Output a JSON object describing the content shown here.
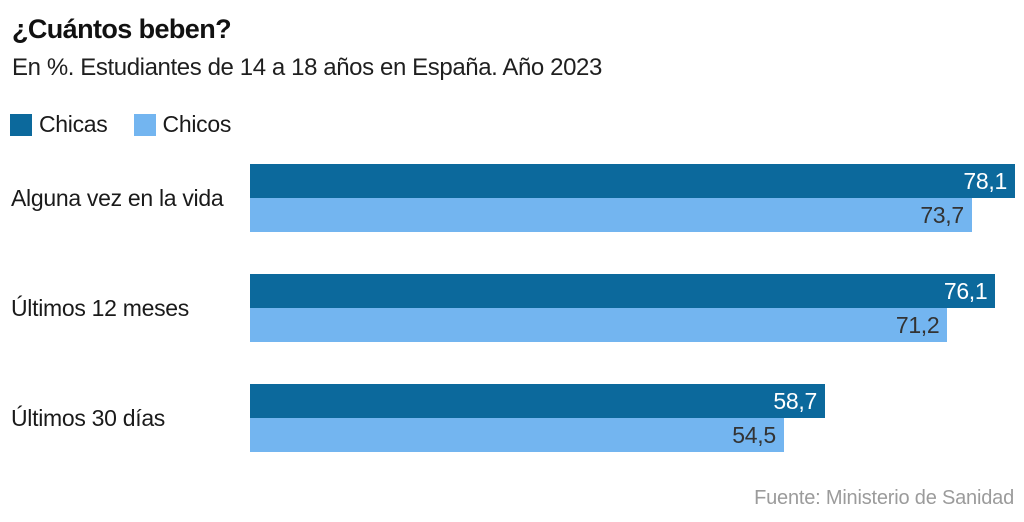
{
  "header": {
    "title": "¿Cuántos beben?",
    "subtitle": "En %. Estudiantes de 14 a 18 años en España. Año 2023"
  },
  "chart_data": {
    "type": "bar",
    "orientation": "horizontal",
    "title": "¿Cuántos beben?",
    "subtitle": "En %. Estudiantes de 14 a 18 años en España. Año 2023",
    "unit": "%",
    "categories": [
      "Alguna vez en la vida",
      "Últimos 12 meses",
      "Últimos 30 días"
    ],
    "series": [
      {
        "name": "Chicas",
        "color": "#0c699c",
        "values": [
          78.1,
          76.1,
          58.7
        ],
        "value_labels": [
          "78,1",
          "76,1",
          "58,7"
        ],
        "value_label_color": "#ffffff"
      },
      {
        "name": "Chicos",
        "color": "#73b5f0",
        "values": [
          73.7,
          71.2,
          54.5
        ],
        "value_labels": [
          "73,7",
          "71,2",
          "54,5"
        ],
        "value_label_color": "#333333"
      }
    ],
    "xlim": [
      0,
      78.1
    ],
    "grid": false,
    "axis_ticks_visible": false,
    "legend_position": "top-left",
    "value_label_position": "inside-end"
  },
  "source": {
    "text": "Fuente: Ministerio de Sanidad"
  }
}
